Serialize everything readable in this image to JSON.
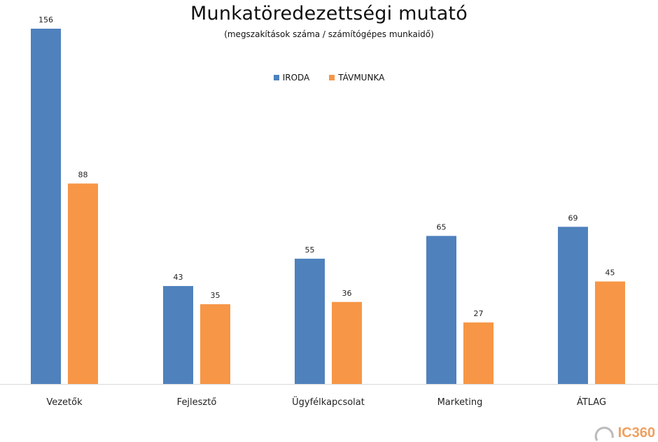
{
  "chart_data": {
    "type": "bar",
    "title": "Munkatöredezettségi mutató",
    "subtitle": "(megszakítások száma / számítógépes munkaidő)",
    "categories": [
      "Vezetők",
      "Fejlesztő",
      "Ügyfélkapcsolat",
      "Marketing",
      "ÁTLAG"
    ],
    "series": [
      {
        "name": "IRODA",
        "color": "#4f81bd",
        "values": [
          156,
          43,
          55,
          65,
          69
        ]
      },
      {
        "name": "TÁVMUNKA",
        "color": "#f79646",
        "values": [
          88,
          35,
          36,
          27,
          45
        ]
      }
    ],
    "ylim": [
      0,
      156
    ],
    "legend": "top-center",
    "grid": false,
    "data_labels": true
  },
  "watermark": {
    "text": "IC360"
  }
}
